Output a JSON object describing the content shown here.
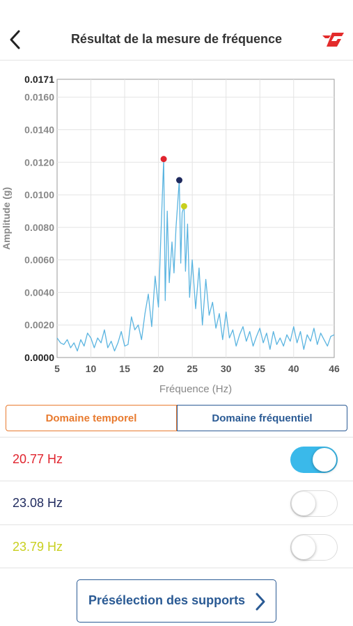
{
  "header": {
    "title": "Résultat de la mesure de fréquence",
    "back_icon": "chevron-left-icon",
    "logo": "brand-logo"
  },
  "chart_data": {
    "type": "line",
    "xlabel": "Fréquence (Hz)",
    "ylabel": "Amplitude (g)",
    "xlim": [
      5,
      46
    ],
    "ylim": [
      0,
      0.0171
    ],
    "x_ticks": [
      "5",
      "10",
      "15",
      "20",
      "25",
      "30",
      "35",
      "40",
      "46"
    ],
    "y_ticks": [
      "0.0000",
      "0.0020",
      "0.0040",
      "0.0060",
      "0.0080",
      "0.0100",
      "0.0120",
      "0.0140",
      "0.0160",
      "0.0171"
    ],
    "grid": true,
    "line_color": "#5ab4e0",
    "series": [
      {
        "x": [
          5,
          5.5,
          6,
          6.5,
          7,
          7.5,
          8,
          8.5,
          9,
          9.5,
          10,
          10.5,
          11,
          11.5,
          12,
          12.5,
          13,
          13.5,
          14,
          14.5,
          15,
          15.5,
          16,
          16.5,
          17,
          17.5,
          18,
          18.5,
          19,
          19.5,
          20,
          20.3,
          20.77,
          21,
          21.3,
          21.6,
          22,
          22.3,
          22.6,
          23.08,
          23.3,
          23.5,
          23.79,
          24,
          24.3,
          24.6,
          25,
          25.5,
          26,
          26.5,
          27,
          27.5,
          28,
          28.5,
          29,
          29.5,
          30,
          30.5,
          31,
          31.5,
          32,
          32.5,
          33,
          33.5,
          34,
          34.5,
          35,
          35.5,
          36,
          36.5,
          37,
          37.5,
          38,
          38.5,
          39,
          39.5,
          40,
          40.5,
          41,
          41.5,
          42,
          42.5,
          43,
          43.5,
          44,
          44.5,
          45,
          45.5,
          46
        ],
        "y": [
          0.0012,
          0.0009,
          0.0008,
          0.0011,
          0.0006,
          0.0009,
          0.0004,
          0.0011,
          0.0007,
          0.0015,
          0.0012,
          0.0006,
          0.0012,
          0.0009,
          0.0017,
          0.0006,
          0.001,
          0.0004,
          0.0009,
          0.0016,
          0.0007,
          0.0008,
          0.0025,
          0.0017,
          0.002,
          0.0011,
          0.0027,
          0.0039,
          0.0019,
          0.005,
          0.0031,
          0.0068,
          0.0122,
          0.0035,
          0.009,
          0.0046,
          0.0071,
          0.0052,
          0.008,
          0.0109,
          0.0058,
          0.0089,
          0.0093,
          0.0053,
          0.0082,
          0.0037,
          0.006,
          0.003,
          0.0055,
          0.002,
          0.0048,
          0.0026,
          0.0034,
          0.0018,
          0.0027,
          0.0011,
          0.0028,
          0.0012,
          0.0017,
          0.0007,
          0.0014,
          0.0019,
          0.001,
          0.0016,
          0.0007,
          0.0013,
          0.0018,
          0.0009,
          0.0015,
          0.0005,
          0.0016,
          0.0008,
          0.0012,
          0.0007,
          0.0014,
          0.001,
          0.0019,
          0.0009,
          0.0016,
          0.0005,
          0.0014,
          0.001,
          0.0018,
          0.0008,
          0.0015,
          0.0011,
          0.0007,
          0.0013,
          0.0014
        ]
      }
    ],
    "peaks": [
      {
        "x": 20.77,
        "y": 0.0122,
        "color": "#e0242e"
      },
      {
        "x": 23.08,
        "y": 0.0109,
        "color": "#1f2a5e"
      },
      {
        "x": 23.79,
        "y": 0.0093,
        "color": "#c8cf1e"
      }
    ]
  },
  "tabs": [
    {
      "label": "Domaine temporel",
      "color": "#e87a2e"
    },
    {
      "label": "Domaine fréquentiel",
      "color": "#2a5a94"
    }
  ],
  "peak_list": [
    {
      "label": "20.77 Hz",
      "color": "#e0242e",
      "enabled": true
    },
    {
      "label": "23.08 Hz",
      "color": "#1f2a5e",
      "enabled": false
    },
    {
      "label": "23.79 Hz",
      "color": "#c8cf1e",
      "enabled": false
    }
  ],
  "preselect_button": {
    "label": "Présélection des supports",
    "icon": "chevron-right-icon"
  }
}
